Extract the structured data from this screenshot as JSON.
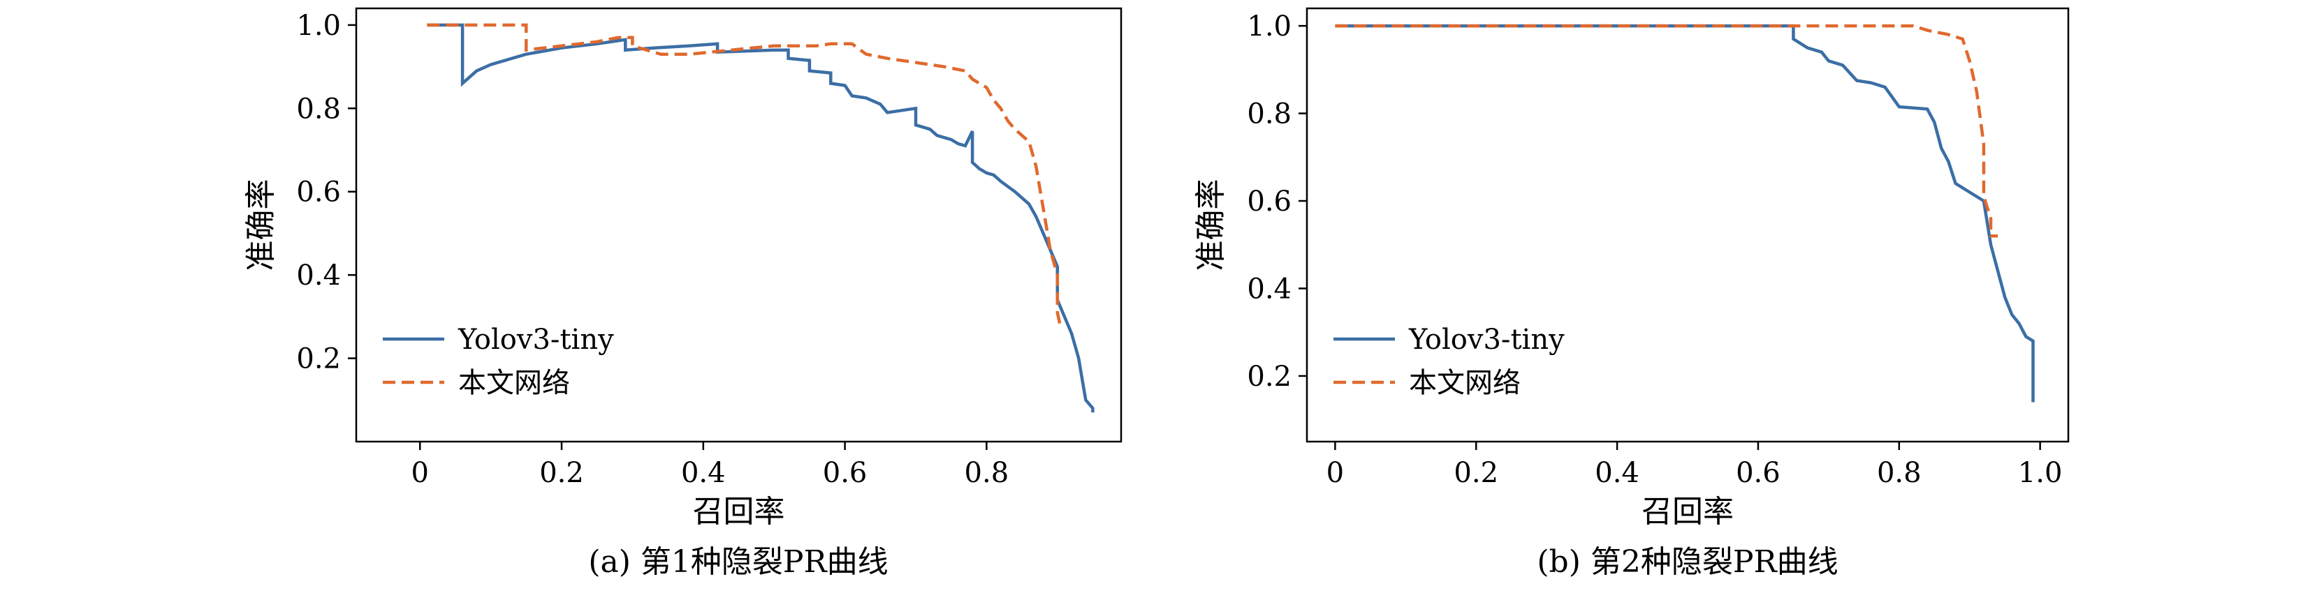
{
  "chart_data": [
    {
      "type": "line",
      "caption": "(a) 第1种隐裂PR曲线",
      "xlabel": "召回率",
      "ylabel": "准确率",
      "xlim": [
        -0.09,
        0.99
      ],
      "ylim": [
        0.0,
        1.04
      ],
      "xticks": [
        0,
        0.2,
        0.4,
        0.6,
        0.8
      ],
      "xtick_labels": [
        "0",
        "0.2",
        "0.4",
        "0.6",
        "0.8"
      ],
      "yticks": [
        0.2,
        0.4,
        0.6,
        0.8,
        1.0
      ],
      "ytick_labels": [
        "0.2",
        "0.4",
        "0.6",
        "0.8",
        "1.0"
      ],
      "legend_position": "lower-left",
      "series": [
        {
          "name": "Yolov3-tiny",
          "color": "#3b6ea5",
          "dash": "solid",
          "points": [
            [
              0.01,
              1.0
            ],
            [
              0.06,
              1.0
            ],
            [
              0.06,
              0.86
            ],
            [
              0.08,
              0.89
            ],
            [
              0.1,
              0.905
            ],
            [
              0.12,
              0.915
            ],
            [
              0.15,
              0.93
            ],
            [
              0.2,
              0.945
            ],
            [
              0.25,
              0.955
            ],
            [
              0.29,
              0.965
            ],
            [
              0.29,
              0.94
            ],
            [
              0.33,
              0.945
            ],
            [
              0.38,
              0.95
            ],
            [
              0.42,
              0.955
            ],
            [
              0.42,
              0.935
            ],
            [
              0.5,
              0.94
            ],
            [
              0.52,
              0.94
            ],
            [
              0.52,
              0.92
            ],
            [
              0.55,
              0.915
            ],
            [
              0.55,
              0.89
            ],
            [
              0.58,
              0.885
            ],
            [
              0.58,
              0.86
            ],
            [
              0.6,
              0.855
            ],
            [
              0.61,
              0.83
            ],
            [
              0.63,
              0.825
            ],
            [
              0.65,
              0.81
            ],
            [
              0.66,
              0.79
            ],
            [
              0.7,
              0.8
            ],
            [
              0.7,
              0.76
            ],
            [
              0.72,
              0.75
            ],
            [
              0.73,
              0.735
            ],
            [
              0.75,
              0.725
            ],
            [
              0.76,
              0.715
            ],
            [
              0.77,
              0.71
            ],
            [
              0.78,
              0.745
            ],
            [
              0.78,
              0.67
            ],
            [
              0.79,
              0.655
            ],
            [
              0.8,
              0.645
            ],
            [
              0.81,
              0.64
            ],
            [
              0.82,
              0.625
            ],
            [
              0.84,
              0.6
            ],
            [
              0.86,
              0.57
            ],
            [
              0.87,
              0.54
            ],
            [
              0.88,
              0.5
            ],
            [
              0.89,
              0.46
            ],
            [
              0.9,
              0.42
            ],
            [
              0.9,
              0.34
            ],
            [
              0.91,
              0.3
            ],
            [
              0.92,
              0.26
            ],
            [
              0.93,
              0.2
            ],
            [
              0.935,
              0.15
            ],
            [
              0.94,
              0.1
            ],
            [
              0.95,
              0.08
            ],
            [
              0.95,
              0.07
            ]
          ]
        },
        {
          "name": "本文网络",
          "color": "#e0692e",
          "dash": "dashed",
          "points": [
            [
              0.01,
              1.0
            ],
            [
              0.15,
              1.0
            ],
            [
              0.15,
              0.94
            ],
            [
              0.2,
              0.95
            ],
            [
              0.25,
              0.96
            ],
            [
              0.28,
              0.97
            ],
            [
              0.3,
              0.97
            ],
            [
              0.3,
              0.95
            ],
            [
              0.34,
              0.93
            ],
            [
              0.38,
              0.93
            ],
            [
              0.44,
              0.94
            ],
            [
              0.5,
              0.95
            ],
            [
              0.56,
              0.95
            ],
            [
              0.58,
              0.955
            ],
            [
              0.61,
              0.955
            ],
            [
              0.63,
              0.93
            ],
            [
              0.66,
              0.92
            ],
            [
              0.7,
              0.91
            ],
            [
              0.74,
              0.9
            ],
            [
              0.77,
              0.89
            ],
            [
              0.78,
              0.87
            ],
            [
              0.8,
              0.85
            ],
            [
              0.81,
              0.82
            ],
            [
              0.82,
              0.8
            ],
            [
              0.83,
              0.77
            ],
            [
              0.84,
              0.75
            ],
            [
              0.86,
              0.72
            ],
            [
              0.87,
              0.66
            ],
            [
              0.88,
              0.56
            ],
            [
              0.89,
              0.46
            ],
            [
              0.9,
              0.4
            ],
            [
              0.9,
              0.31
            ],
            [
              0.905,
              0.27
            ]
          ]
        }
      ]
    },
    {
      "type": "line",
      "caption": "(b) 第2种隐裂PR曲线",
      "xlabel": "召回率",
      "ylabel": "准确率",
      "xlim": [
        -0.04,
        1.04
      ],
      "ylim": [
        0.05,
        1.04
      ],
      "xticks": [
        0,
        0.2,
        0.4,
        0.6,
        0.8,
        1.0
      ],
      "xtick_labels": [
        "0",
        "0.2",
        "0.4",
        "0.6",
        "0.8",
        "1.0"
      ],
      "yticks": [
        0.2,
        0.4,
        0.6,
        0.8,
        1.0
      ],
      "ytick_labels": [
        "0.2",
        "0.4",
        "0.6",
        "0.8",
        "1.0"
      ],
      "legend_position": "lower-left",
      "series": [
        {
          "name": "Yolov3-tiny",
          "color": "#3b6ea5",
          "dash": "solid",
          "points": [
            [
              0.0,
              1.0
            ],
            [
              0.65,
              1.0
            ],
            [
              0.65,
              0.97
            ],
            [
              0.67,
              0.95
            ],
            [
              0.69,
              0.94
            ],
            [
              0.7,
              0.92
            ],
            [
              0.72,
              0.91
            ],
            [
              0.74,
              0.875
            ],
            [
              0.76,
              0.87
            ],
            [
              0.78,
              0.86
            ],
            [
              0.8,
              0.815
            ],
            [
              0.84,
              0.81
            ],
            [
              0.85,
              0.78
            ],
            [
              0.86,
              0.72
            ],
            [
              0.87,
              0.69
            ],
            [
              0.88,
              0.64
            ],
            [
              0.9,
              0.62
            ],
            [
              0.92,
              0.6
            ],
            [
              0.93,
              0.5
            ],
            [
              0.95,
              0.38
            ],
            [
              0.96,
              0.34
            ],
            [
              0.97,
              0.32
            ],
            [
              0.98,
              0.29
            ],
            [
              0.99,
              0.28
            ],
            [
              0.99,
              0.14
            ]
          ]
        },
        {
          "name": "本文网络",
          "color": "#e0692e",
          "dash": "dashed",
          "points": [
            [
              0.0,
              1.0
            ],
            [
              0.82,
              1.0
            ],
            [
              0.84,
              0.99
            ],
            [
              0.87,
              0.98
            ],
            [
              0.89,
              0.97
            ],
            [
              0.9,
              0.92
            ],
            [
              0.91,
              0.85
            ],
            [
              0.92,
              0.73
            ],
            [
              0.92,
              0.61
            ],
            [
              0.93,
              0.56
            ],
            [
              0.93,
              0.52
            ],
            [
              0.94,
              0.52
            ]
          ]
        }
      ]
    }
  ]
}
